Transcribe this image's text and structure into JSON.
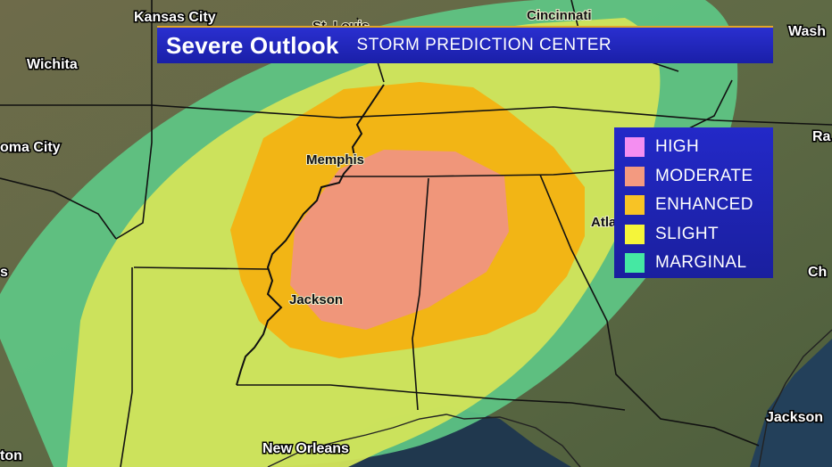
{
  "header": {
    "title": "Severe Outlook",
    "source": "STORM PREDICTION CENTER"
  },
  "legend": {
    "items": [
      {
        "label": "HIGH",
        "color": "#f48ef1"
      },
      {
        "label": "MODERATE",
        "color": "#f39a80"
      },
      {
        "label": "ENHANCED",
        "color": "#f8c325"
      },
      {
        "label": "SLIGHT",
        "color": "#f5f53a"
      },
      {
        "label": "MARGINAL",
        "color": "#45e8a3"
      }
    ]
  },
  "cities": {
    "kansas_city": "Kansas City",
    "st_louis": "St. Louis",
    "cincinnati": "Cincinnati",
    "washington": "Wash",
    "wichita": "Wichita",
    "oklahoma_city": "oma City",
    "raleigh": "Ra",
    "memphis": "Memphis",
    "atlanta": "Atla",
    "charleston": "Ch",
    "jackson_ms": "Jackson",
    "jackson_fl": "Jackson",
    "new_orleans": "New Orleans",
    "houston": "ton",
    "dallas": "s"
  },
  "colors": {
    "marginal_fill": "#5ec785",
    "slight_fill": "#d2e45a",
    "enhanced_fill": "#f2b515",
    "moderate_fill": "#f0967a",
    "title_bar": "#2a2fd0",
    "accent_line": "#e2a526"
  }
}
